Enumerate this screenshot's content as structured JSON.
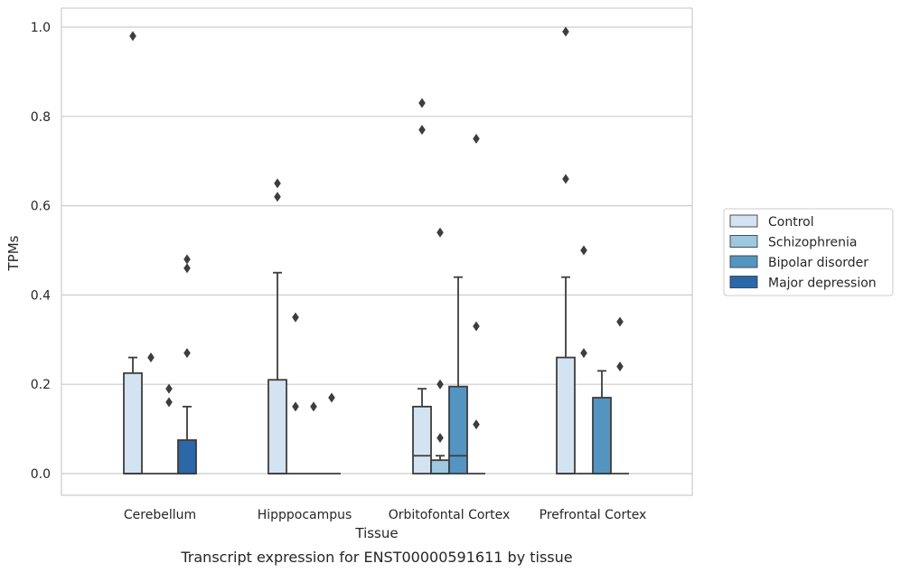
{
  "caption": "Transcript expression for ENST00000591611 by tissue",
  "colors": {
    "Control": "#d4e3f1",
    "Schizophrenia": "#9dc8df",
    "Bipolar disorder": "#5494c1",
    "Major depression": "#2a68a9",
    "edge": "#3d3d3d",
    "grid": "#cccccc",
    "frame": "#cccccc"
  },
  "chart_data": {
    "type": "box",
    "title": "",
    "xlabel": "Tissue",
    "ylabel": "TPMs",
    "ylim": [
      -0.05,
      1.04
    ],
    "yticks": [
      0.0,
      0.2,
      0.4,
      0.6,
      0.8,
      1.0
    ],
    "ytick_labels": [
      "0.0",
      "0.2",
      "0.4",
      "0.6",
      "0.8",
      "1.0"
    ],
    "grid": "horizontal",
    "legend_position": "outside-right",
    "categories": [
      "Cerebellum",
      "Hipppocampus",
      "Orbitofontal Cortex",
      "Prefrontal Cortex"
    ],
    "hue_order": [
      "Control",
      "Schizophrenia",
      "Bipolar disorder",
      "Major depression"
    ],
    "series": [
      {
        "name": "Control",
        "boxes": [
          {
            "q1": 0.0,
            "median": 0.0,
            "q3": 0.225,
            "whisker_low": 0.0,
            "whisker_high": 0.26,
            "outliers": [
              0.98
            ]
          },
          {
            "q1": 0.0,
            "median": 0.0,
            "q3": 0.21,
            "whisker_low": 0.0,
            "whisker_high": 0.45,
            "outliers": [
              0.65,
              0.62
            ]
          },
          {
            "q1": 0.0,
            "median": 0.04,
            "q3": 0.15,
            "whisker_low": 0.0,
            "whisker_high": 0.19,
            "outliers": [
              0.83,
              0.77
            ]
          },
          {
            "q1": 0.0,
            "median": 0.0,
            "q3": 0.26,
            "whisker_low": 0.0,
            "whisker_high": 0.44,
            "outliers": [
              0.99,
              0.66
            ]
          }
        ]
      },
      {
        "name": "Schizophrenia",
        "boxes": [
          {
            "q1": 0.0,
            "median": 0.0,
            "q3": 0.0,
            "whisker_low": 0.0,
            "whisker_high": 0.0,
            "outliers": [
              0.26
            ]
          },
          {
            "q1": 0.0,
            "median": 0.0,
            "q3": 0.0,
            "whisker_low": 0.0,
            "whisker_high": 0.0,
            "outliers": [
              0.35,
              0.15
            ]
          },
          {
            "q1": 0.0,
            "median": 0.0,
            "q3": 0.03,
            "whisker_low": 0.0,
            "whisker_high": 0.04,
            "outliers": [
              0.54,
              0.2,
              0.08
            ]
          },
          {
            "q1": 0.0,
            "median": 0.0,
            "q3": 0.0,
            "whisker_low": 0.0,
            "whisker_high": 0.0,
            "outliers": [
              0.5,
              0.27
            ]
          }
        ]
      },
      {
        "name": "Bipolar disorder",
        "boxes": [
          {
            "q1": 0.0,
            "median": 0.0,
            "q3": 0.0,
            "whisker_low": 0.0,
            "whisker_high": 0.0,
            "outliers": [
              0.19,
              0.16
            ]
          },
          {
            "q1": 0.0,
            "median": 0.0,
            "q3": 0.0,
            "whisker_low": 0.0,
            "whisker_high": 0.0,
            "outliers": [
              0.15
            ]
          },
          {
            "q1": 0.0,
            "median": 0.04,
            "q3": 0.195,
            "whisker_low": 0.0,
            "whisker_high": 0.44,
            "outliers": []
          },
          {
            "q1": 0.0,
            "median": 0.0,
            "q3": 0.17,
            "whisker_low": 0.0,
            "whisker_high": 0.23,
            "outliers": []
          }
        ]
      },
      {
        "name": "Major depression",
        "boxes": [
          {
            "q1": 0.0,
            "median": 0.0,
            "q3": 0.075,
            "whisker_low": 0.0,
            "whisker_high": 0.15,
            "outliers": [
              0.48,
              0.46,
              0.27
            ]
          },
          {
            "q1": 0.0,
            "median": 0.0,
            "q3": 0.0,
            "whisker_low": 0.0,
            "whisker_high": 0.0,
            "outliers": [
              0.17
            ]
          },
          {
            "q1": 0.0,
            "median": 0.0,
            "q3": 0.0,
            "whisker_low": 0.0,
            "whisker_high": 0.0,
            "outliers": [
              0.75,
              0.33,
              0.11
            ]
          },
          {
            "q1": 0.0,
            "median": 0.0,
            "q3": 0.0,
            "whisker_low": 0.0,
            "whisker_high": 0.0,
            "outliers": [
              0.34,
              0.24
            ]
          }
        ]
      }
    ]
  }
}
